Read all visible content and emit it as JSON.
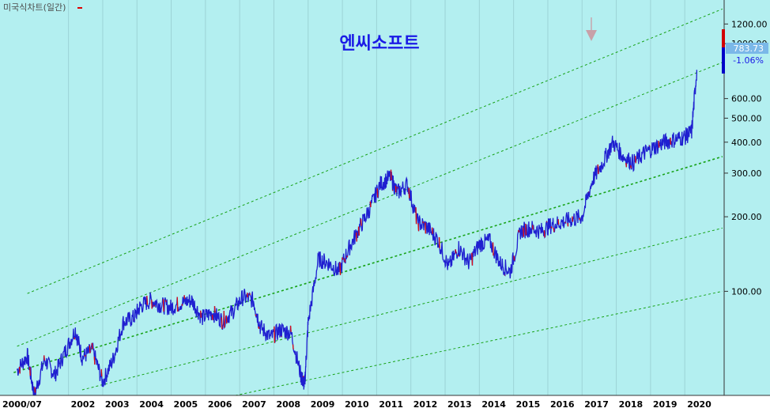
{
  "header": {
    "label": "미국식차트(일간)",
    "marker_color": "#e00000"
  },
  "chart_data": {
    "type": "line",
    "title": "엔씨소프트",
    "title_color": "#1a1ae6",
    "background": "#b3eff0",
    "price_color": "#1f1fd0",
    "down_color": "#e01010",
    "channel_color": "#19a319",
    "yscale": "log",
    "ylim": [
      38,
      1500
    ],
    "y_ticks": [
      {
        "value": 1200,
        "label": "1200.00"
      },
      {
        "value": 1000,
        "label": "1000.00"
      },
      {
        "value": 600,
        "label": "600.00"
      },
      {
        "value": 500,
        "label": "500.00"
      },
      {
        "value": 400,
        "label": "400.00"
      },
      {
        "value": 300,
        "label": "300.00"
      },
      {
        "value": 200,
        "label": "200.00"
      },
      {
        "value": 100,
        "label": "100.00"
      }
    ],
    "x_labels": [
      "2000/07",
      "2002",
      "2003",
      "2004",
      "2005",
      "2006",
      "2007",
      "2008",
      "2009",
      "2010",
      "2011",
      "2012",
      "2013",
      "2014",
      "2015",
      "2016",
      "2017",
      "2018",
      "2019",
      "2020"
    ],
    "last_price": {
      "label": "783.73",
      "value": 783.73
    },
    "change": {
      "label": "-1.06%"
    },
    "x": [
      2000.5,
      2000.8,
      2001.0,
      2001.3,
      2001.6,
      2001.9,
      2002.2,
      2002.4,
      2002.7,
      2003.0,
      2003.3,
      2003.6,
      2003.9,
      2004.1,
      2004.4,
      2004.7,
      2005.0,
      2005.3,
      2005.6,
      2005.9,
      2006.2,
      2006.5,
      2006.8,
      2007.1,
      2007.4,
      2007.6,
      2007.9,
      2008.2,
      2008.5,
      2008.8,
      2008.9,
      2009.0,
      2009.3,
      2009.6,
      2009.9,
      2010.2,
      2010.5,
      2010.8,
      2011.1,
      2011.4,
      2011.6,
      2011.9,
      2012.2,
      2012.5,
      2012.8,
      2013.1,
      2013.4,
      2013.7,
      2014.0,
      2014.3,
      2014.6,
      2014.9,
      2015.2,
      2015.5,
      2015.8,
      2016.1,
      2016.4,
      2016.7,
      2017.0,
      2017.3,
      2017.6,
      2017.9,
      2018.2,
      2018.5,
      2018.8,
      2019.1,
      2019.4,
      2019.7,
      2020.0,
      2020.2,
      2020.35
    ],
    "y": [
      48,
      55,
      38,
      53,
      46,
      57,
      70,
      54,
      58,
      43,
      53,
      75,
      78,
      87,
      92,
      88,
      86,
      90,
      92,
      78,
      82,
      76,
      83,
      95,
      92,
      72,
      65,
      70,
      68,
      45,
      42,
      75,
      135,
      130,
      120,
      150,
      180,
      215,
      270,
      290,
      250,
      270,
      190,
      180,
      160,
      125,
      150,
      130,
      155,
      160,
      130,
      120,
      175,
      180,
      175,
      185,
      190,
      195,
      200,
      280,
      330,
      400,
      350,
      330,
      360,
      380,
      400,
      410,
      420,
      440,
      783.73
    ],
    "channels": [
      {
        "x": [
          2000.8,
          2021.1
        ],
        "y": [
          98,
          1380
        ]
      },
      {
        "x": [
          2000.5,
          2021.1
        ],
        "y": [
          60,
          840
        ]
      },
      {
        "x": [
          2000.4,
          2021.1
        ],
        "y": [
          47,
          350
        ]
      },
      {
        "x": [
          2002.4,
          2021.1
        ],
        "y": [
          40,
          180
        ]
      },
      {
        "x": [
          2002.4,
          2021.1
        ],
        "y": [
          28,
          100
        ]
      }
    ]
  }
}
